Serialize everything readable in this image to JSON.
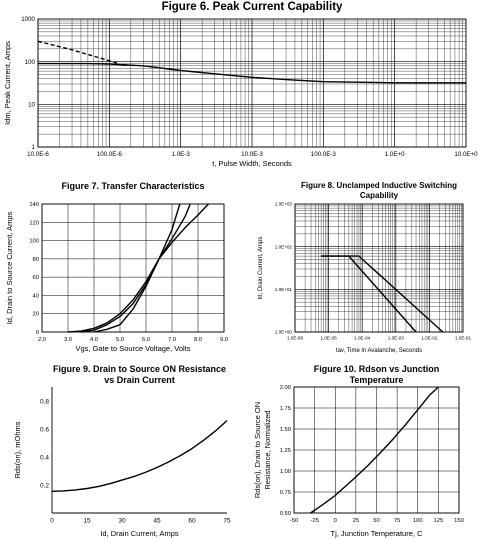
{
  "chart_data": [
    {
      "id": "fig6",
      "type": "line",
      "title": "Figure 6. Peak Current Capability",
      "xlabel": "t, Pulse Width, Seconds",
      "ylabel": "Idm, Peak Current, Amps",
      "xscale": "log",
      "yscale": "log",
      "xlim": [
        1e-05,
        10
      ],
      "ylim": [
        1,
        1000
      ],
      "xticks": [
        1e-05,
        0.0001,
        0.001,
        0.01,
        0.1,
        1,
        10
      ],
      "xtick_labels": [
        "10.0E-6",
        "100.0E-6",
        "1.0E-3",
        "10.0E-3",
        "100.0E-3",
        "1.0E+0",
        "10.0E+0"
      ],
      "yticks": [
        1,
        10,
        100,
        1000
      ],
      "ytick_labels": [
        "1",
        "10",
        "100",
        "1000"
      ],
      "grid": true,
      "series": [
        {
          "style": "solid",
          "x": [
            1e-05,
            5e-05,
            0.0001,
            0.0003,
            0.001,
            0.003,
            0.01,
            0.03,
            0.1,
            1,
            10
          ],
          "y": [
            90,
            90,
            88,
            80,
            62,
            52,
            43,
            38,
            34,
            32,
            32
          ]
        },
        {
          "style": "dashed",
          "x": [
            1e-05,
            3e-05,
            7e-05,
            0.00013
          ],
          "y": [
            300,
            190,
            125,
            92
          ]
        }
      ]
    },
    {
      "id": "fig7",
      "type": "line",
      "title": "Figure 7. Transfer Characteristics",
      "xlabel": "Vgs, Gate to Source Voltage, Volts",
      "ylabel": "Id, Drain to Source Current, Amps",
      "xlim": [
        2,
        9
      ],
      "ylim": [
        0,
        140
      ],
      "xticks": [
        2,
        3,
        4,
        5,
        6,
        7,
        8,
        9
      ],
      "xtick_labels": [
        "2.0",
        "3.0",
        "4.0",
        "5.0",
        "6.0",
        "7.0",
        "8.0",
        "9.0"
      ],
      "yticks": [
        0,
        20,
        40,
        60,
        80,
        100,
        120,
        140
      ],
      "ytick_labels": [
        "0",
        "20",
        "40",
        "60",
        "80",
        "100",
        "120",
        "140"
      ],
      "grid": true,
      "series": [
        {
          "x": [
            3.0,
            3.5,
            4.0,
            4.5,
            5.0,
            5.5,
            6.0,
            6.5,
            7.0,
            7.3
          ],
          "y": [
            0,
            1,
            4,
            10,
            20,
            35,
            55,
            80,
            112,
            140
          ]
        },
        {
          "x": [
            3.5,
            4.0,
            4.5,
            5.0,
            5.5,
            6.0,
            6.5,
            7.0,
            7.5,
            7.7
          ],
          "y": [
            0,
            2,
            8,
            17,
            31,
            52,
            80,
            102,
            126,
            140
          ]
        },
        {
          "x": [
            4.0,
            4.5,
            5.0,
            5.5,
            6.0,
            6.5,
            7.0,
            7.5,
            8.0,
            8.4
          ],
          "y": [
            0,
            3,
            8,
            25,
            50,
            80,
            98,
            114,
            128,
            140
          ]
        }
      ]
    },
    {
      "id": "fig8",
      "type": "line",
      "title": "Figure 8. Unclamped Inductive Switching Capability",
      "title_lines": [
        "Figure 8. Unclamped Inductive Switching",
        "Capability"
      ],
      "xlabel": "tav, Time in Avalanche, Seconds",
      "ylabel": "Id, Drain Current, Amps",
      "xscale": "log",
      "yscale": "log",
      "xlim": [
        1e-06,
        0.1
      ],
      "ylim": [
        1,
        1000
      ],
      "xticks": [
        1e-06,
        1e-05,
        0.0001,
        0.001,
        0.01,
        0.1
      ],
      "xtick_labels": [
        "1.0E-06",
        "1.0E-05",
        "1.0E-04",
        "1.0E-03",
        "1.0E-02",
        "1.0E-01"
      ],
      "yticks": [
        1,
        10,
        100,
        1000
      ],
      "ytick_labels": [
        "1.0E+00",
        "1.0E+01",
        "1.0E+02",
        "1.0E+03"
      ],
      "grid": true,
      "series": [
        {
          "x": [
            6e-06,
            4e-05,
            0.004
          ],
          "y": [
            60,
            60,
            1
          ]
        },
        {
          "x": [
            6e-06,
            8e-05,
            0.025
          ],
          "y": [
            60,
            60,
            1
          ]
        }
      ]
    },
    {
      "id": "fig9",
      "type": "line",
      "title": "Figure 9. Drain to Source ON Resistance vs Drain Current",
      "title_lines": [
        "Figure 9. Drain to Source ON Resistance",
        "vs Drain Current"
      ],
      "xlabel": "Id, Drain Current, Amps",
      "ylabel": "Rds(on),  mOhms",
      "xlim": [
        0,
        75
      ],
      "ylim": [
        0,
        0.9
      ],
      "xticks": [
        0,
        15,
        30,
        45,
        60,
        75
      ],
      "xtick_labels": [
        "0",
        "15",
        "30",
        "45",
        "60",
        "75"
      ],
      "yticks": [
        0.2,
        0.4,
        0.6,
        0.8
      ],
      "ytick_labels": [
        "0.2",
        "0.4",
        "0.6",
        "0.8"
      ],
      "grid": false,
      "series": [
        {
          "x": [
            0,
            5,
            10,
            15,
            20,
            25,
            30,
            35,
            40,
            45,
            50,
            55,
            60,
            65,
            70,
            75
          ],
          "y": [
            0.155,
            0.158,
            0.165,
            0.175,
            0.19,
            0.21,
            0.235,
            0.26,
            0.29,
            0.325,
            0.365,
            0.41,
            0.46,
            0.52,
            0.585,
            0.66
          ]
        }
      ]
    },
    {
      "id": "fig10",
      "type": "line",
      "title": "Figure 10. Rdson vs Junction Temperature",
      "title_lines": [
        "Figure 10. Rdson vs Junction",
        "Temperature"
      ],
      "xlabel": "Tj, Junction Temperature, C",
      "ylabel": "Rds(on), Drain to Source ON Resistance, Normalized",
      "ylabel_lines": [
        "Rds(on), Drain to Source ON",
        "Resistance, Normalized"
      ],
      "xlim": [
        -50,
        150
      ],
      "ylim": [
        0.5,
        2.0
      ],
      "xticks": [
        -50,
        -25,
        0,
        25,
        50,
        75,
        100,
        125,
        150
      ],
      "xtick_labels": [
        "-50",
        "-25",
        "0",
        "25",
        "50",
        "75",
        "100",
        "125",
        "150"
      ],
      "yticks": [
        0.5,
        0.75,
        1.0,
        1.25,
        1.5,
        1.75,
        2.0
      ],
      "ytick_labels": [
        "0.50",
        "0.75",
        "1.00",
        "1.25",
        "1.50",
        "1.75",
        "2.00"
      ],
      "grid": true,
      "series": [
        {
          "x": [
            -30,
            -15,
            0,
            15,
            25,
            40,
            55,
            70,
            85,
            100,
            115,
            125
          ],
          "y": [
            0.5,
            0.6,
            0.71,
            0.84,
            0.93,
            1.07,
            1.22,
            1.38,
            1.55,
            1.73,
            1.91,
            2.0
          ]
        }
      ]
    }
  ]
}
